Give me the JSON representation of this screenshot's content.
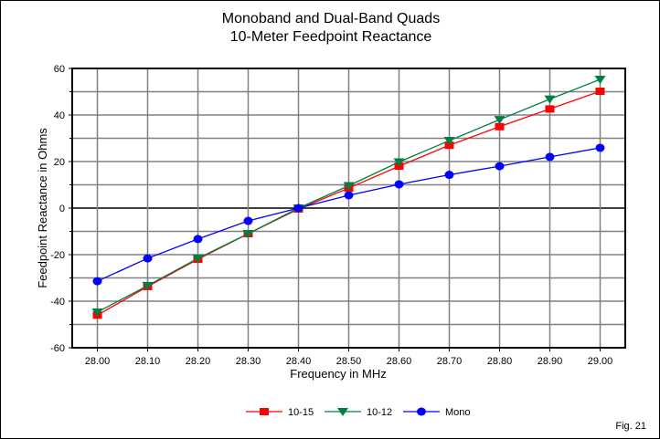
{
  "chart_data": {
    "type": "line",
    "title": "Monoband and Dual-Band Quads",
    "subtitle": "10-Meter Feedpoint Reactance",
    "xlabel": "Frequency in MHz",
    "ylabel": "Feedpoint Reactance in Ohms",
    "x": [
      28.0,
      28.1,
      28.2,
      28.3,
      28.4,
      28.5,
      28.6,
      28.7,
      28.8,
      28.9,
      29.0
    ],
    "x_tick_labels": [
      "28.00",
      "28.10",
      "28.20",
      "28.30",
      "28.40",
      "28.50",
      "28.60",
      "28.70",
      "28.80",
      "28.90",
      "29.00"
    ],
    "y_tick_labels": [
      "60",
      "40",
      "20",
      "0",
      "-20",
      "-40",
      "-60"
    ],
    "y_ticks": [
      60,
      40,
      20,
      0,
      -20,
      -40,
      -60
    ],
    "ylim": [
      -60,
      60
    ],
    "xlim": [
      27.95,
      29.05
    ],
    "grid": true,
    "legend_position": "bottom-center",
    "series": [
      {
        "name": "10-15",
        "color": "#ff0000",
        "marker": "square",
        "values": [
          -46,
          -33.7,
          -22,
          -11,
          -0.4,
          8.6,
          18,
          27,
          35,
          42.6,
          50.2
        ]
      },
      {
        "name": "10-12",
        "color": "#008040",
        "marker": "triangle-down",
        "values": [
          -44.7,
          -33.3,
          -21.6,
          -11,
          0,
          9.6,
          19.8,
          29,
          38,
          46.8,
          55.3
        ]
      },
      {
        "name": "Mono",
        "color": "#0000ff",
        "marker": "circle",
        "values": [
          -31.4,
          -21.6,
          -13.3,
          -5.5,
          0,
          5.5,
          10.2,
          14.3,
          18,
          22,
          25.9
        ]
      }
    ],
    "annotation": "Fig. 21"
  }
}
